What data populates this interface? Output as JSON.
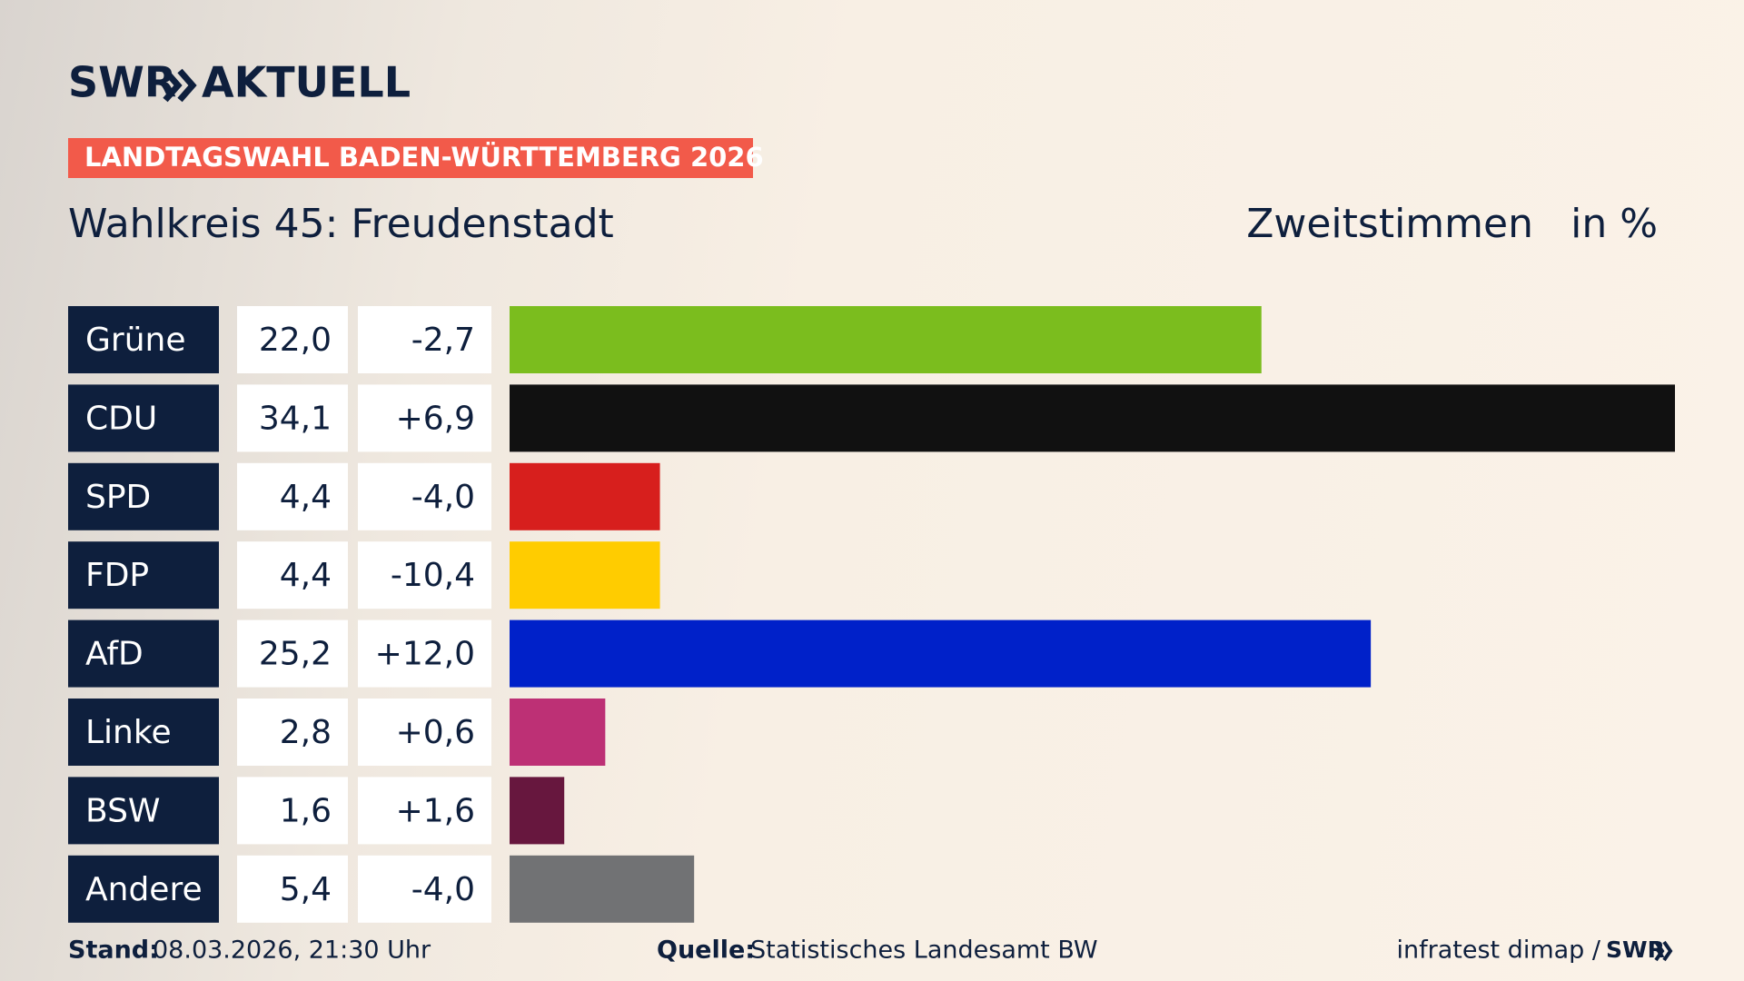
{
  "logo": {
    "brand": "SWR",
    "name": "AKTUELL"
  },
  "chart_data": {
    "type": "bar",
    "banner": "LANDTAGSWAHL BADEN-WÜRTTEMBERG 2026",
    "title": "Wahlkreis 45: Freudenstadt",
    "measure": "Zweitstimmen",
    "unit": "in %",
    "categories": [
      "Grüne",
      "CDU",
      "SPD",
      "FDP",
      "AfD",
      "Linke",
      "BSW",
      "Andere"
    ],
    "values": [
      22.0,
      34.1,
      4.4,
      4.4,
      25.2,
      2.8,
      1.6,
      5.4
    ],
    "value_labels": [
      "22,0",
      "34,1",
      "4,4",
      "4,4",
      "25,2",
      "2,8",
      "1,6",
      "5,4"
    ],
    "changes": [
      -2.7,
      6.9,
      -4.0,
      -10.4,
      12.0,
      0.6,
      1.6,
      -4.0
    ],
    "change_labels": [
      "-2,7",
      "+6,9",
      "-4,0",
      "-10,4",
      "+12,0",
      "+0,6",
      "+1,6",
      "-4,0"
    ],
    "colors": [
      "#7bbd1e",
      "#111111",
      "#d71f1d",
      "#ffcc00",
      "#0021c9",
      "#bd3075",
      "#67173e",
      "#717274"
    ]
  },
  "footer": {
    "stand_label": "Stand:",
    "stand": "08.03.2026, 21:30 Uhr",
    "source_label": "Quelle:",
    "source": "Statistisches Landesamt BW",
    "credit": "infratest dimap /",
    "credit_brand": "SWR"
  }
}
